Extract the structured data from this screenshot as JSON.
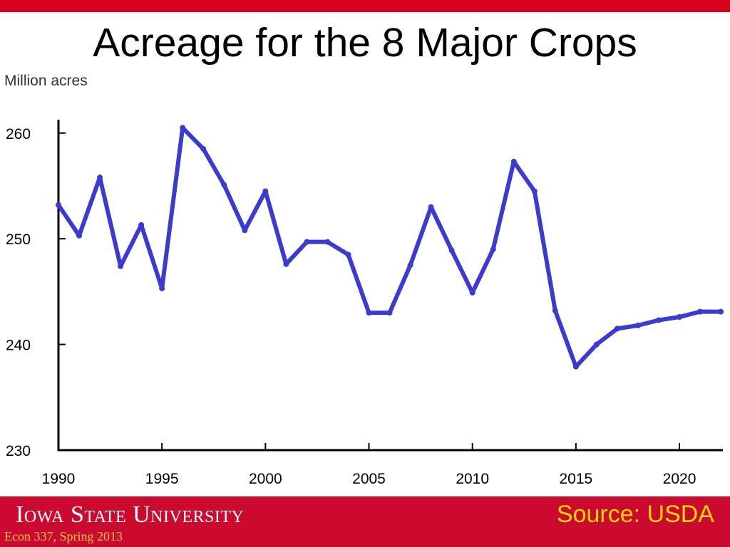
{
  "slide": {
    "title": "Acreage for the 8 Major Crops",
    "accent_color": "#d6001c"
  },
  "footer": {
    "university": "Iowa State University",
    "course": "Econ 337, Spring 2013",
    "source": "Source: USDA",
    "background_color": "#cc0a2f",
    "source_color": "#ffd700"
  },
  "chart_data": {
    "type": "line",
    "title": "",
    "ylabel": "Million acres",
    "xlabel": "",
    "x": [
      1990,
      1991,
      1992,
      1993,
      1994,
      1995,
      1996,
      1997,
      1998,
      1999,
      2000,
      2001,
      2002,
      2003,
      2004,
      2005,
      2006,
      2007,
      2008,
      2009,
      2010,
      2011,
      2012,
      2013,
      2014,
      2015,
      2016,
      2017,
      2018,
      2019,
      2020,
      2021,
      2022
    ],
    "series": [
      {
        "color": "#3b3bd4",
        "values": [
          253.2,
          250.3,
          255.8,
          247.4,
          251.3,
          245.3,
          260.5,
          258.5,
          255.1,
          250.8,
          254.5,
          247.6,
          249.7,
          249.7,
          248.5,
          243.0,
          243.0,
          247.5,
          253.0,
          248.9,
          244.9,
          249.0,
          257.3,
          254.5,
          243.2,
          237.9,
          240.0,
          241.5,
          241.8,
          242.3,
          242.6,
          243.1,
          243.1
        ]
      }
    ],
    "xlim": [
      1990,
      2022
    ],
    "ylim": [
      230,
      261
    ],
    "xticks": [
      1990,
      1995,
      2000,
      2005,
      2010,
      2015,
      2020
    ],
    "yticks": [
      230,
      240,
      250,
      260
    ],
    "grid": false
  }
}
